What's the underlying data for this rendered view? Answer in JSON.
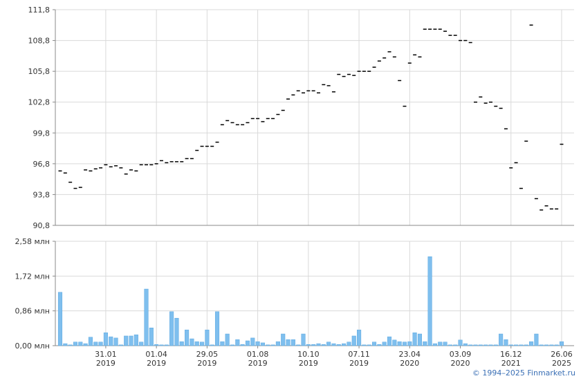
{
  "chart_data": [
    {
      "type": "candlestick",
      "color": "#000000",
      "values": [
        96.1,
        95.9,
        95.0,
        94.4,
        94.5,
        96.2,
        96.1,
        96.3,
        96.4,
        96.7,
        96.5,
        96.6,
        96.4,
        95.8,
        96.2,
        96.1,
        96.7,
        96.7,
        96.7,
        96.8,
        97.1,
        96.9,
        97.0,
        97.0,
        97.0,
        97.3,
        97.3,
        98.1,
        98.5,
        98.5,
        98.5,
        98.9,
        100.6,
        101.0,
        100.8,
        100.6,
        100.6,
        100.8,
        101.2,
        101.2,
        100.9,
        101.2,
        101.2,
        101.6,
        102.0,
        103.1,
        103.5,
        103.9,
        103.7,
        103.9,
        103.9,
        103.7,
        104.5,
        104.4,
        103.8,
        105.5,
        105.3,
        105.5,
        105.4,
        105.8,
        105.8,
        105.8,
        106.2,
        106.8,
        107.1,
        107.7,
        107.2,
        104.9,
        102.4,
        106.6,
        107.4,
        107.2,
        109.9,
        109.9,
        109.9,
        109.9,
        109.7,
        109.3,
        109.3,
        108.8,
        108.8,
        108.6,
        102.8,
        103.3,
        102.7,
        102.8,
        102.4,
        102.2,
        100.2,
        96.4,
        96.9,
        94.4,
        99.0,
        110.3,
        93.4,
        92.3,
        92.7,
        92.4,
        92.4,
        98.7
      ],
      "ylim": [
        90.8,
        111.8
      ],
      "yticks": [
        {
          "value": 90.8,
          "label": "90,8"
        },
        {
          "value": 93.8,
          "label": "93,8"
        },
        {
          "value": 96.8,
          "label": "96,8"
        },
        {
          "value": 99.8,
          "label": "99,8"
        },
        {
          "value": 102.8,
          "label": "102,8"
        },
        {
          "value": 105.8,
          "label": "105,8"
        },
        {
          "value": 108.8,
          "label": "108,8"
        },
        {
          "value": 111.8,
          "label": "111,8"
        }
      ],
      "grid": true
    },
    {
      "type": "bar",
      "color": "#7fbfee",
      "categories": [
        null,
        null,
        null,
        null,
        null,
        null,
        null,
        null,
        null,
        "31.01 2019",
        null,
        null,
        null,
        null,
        null,
        null,
        null,
        null,
        null,
        "01.04 2019",
        null,
        null,
        null,
        null,
        null,
        null,
        null,
        null,
        null,
        "29.05 2019",
        null,
        null,
        null,
        null,
        null,
        null,
        null,
        null,
        null,
        "01.08 2019",
        null,
        null,
        null,
        null,
        null,
        null,
        null,
        null,
        null,
        "10.10 2019",
        null,
        null,
        null,
        null,
        null,
        null,
        null,
        null,
        null,
        "07.11 2019",
        null,
        null,
        null,
        null,
        null,
        null,
        null,
        null,
        null,
        "23.04 2020",
        null,
        null,
        null,
        null,
        null,
        null,
        null,
        null,
        null,
        "03.09 2020",
        null,
        null,
        null,
        null,
        null,
        null,
        null,
        null,
        null,
        "16.12 2021",
        null,
        null,
        null,
        null,
        null,
        null,
        null,
        null,
        null,
        "26.06 2025"
      ],
      "values": [
        1.32,
        0.05,
        0.02,
        0.09,
        0.09,
        0.05,
        0.21,
        0.09,
        0.09,
        0.32,
        0.22,
        0.19,
        0.02,
        0.24,
        0.24,
        0.27,
        0.09,
        1.4,
        0.44,
        0.03,
        0.02,
        0.02,
        0.84,
        0.68,
        0.1,
        0.39,
        0.17,
        0.1,
        0.09,
        0.39,
        0.02,
        0.84,
        0.1,
        0.29,
        0.02,
        0.15,
        0.03,
        0.12,
        0.19,
        0.1,
        0.07,
        0.02,
        0.02,
        0.1,
        0.29,
        0.15,
        0.15,
        0.02,
        0.29,
        0.03,
        0.03,
        0.05,
        0.03,
        0.09,
        0.05,
        0.03,
        0.05,
        0.09,
        0.24,
        0.39,
        0.02,
        0.02,
        0.09,
        0.03,
        0.09,
        0.22,
        0.14,
        0.1,
        0.09,
        0.1,
        0.32,
        0.29,
        0.1,
        2.2,
        0.05,
        0.09,
        0.09,
        0.02,
        0.02,
        0.14,
        0.05,
        0.02,
        0.02,
        0.02,
        0.02,
        0.02,
        0.02,
        0.29,
        0.15,
        0.02,
        0.02,
        0.02,
        0.02,
        0.1,
        0.29,
        0.02,
        0.02,
        0.02,
        0.02,
        0.1
      ],
      "ylim": [
        0,
        2.58
      ],
      "yticks": [
        {
          "value": 0,
          "label": "0,00 млн"
        },
        {
          "value": 0.86,
          "label": "0,86 млн"
        },
        {
          "value": 1.72,
          "label": "1,72 млн"
        },
        {
          "value": 2.58,
          "label": "2,58 млн"
        }
      ],
      "grid": true
    }
  ],
  "credit": "© 1994–2025 Finmarket.ru"
}
